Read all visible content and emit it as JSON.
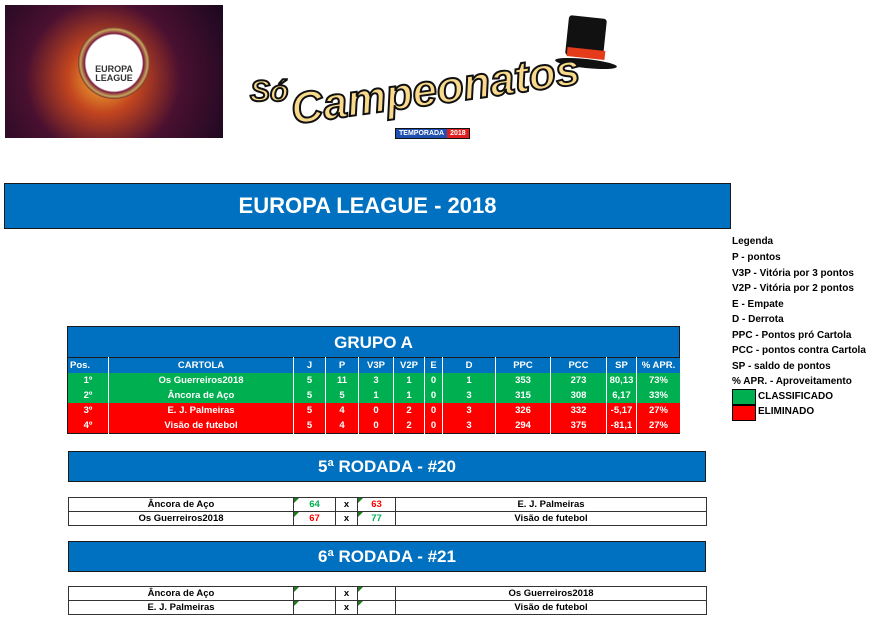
{
  "logos": {
    "europa_league": "UEFA EUROPA LEAGUE",
    "so_campeonatos_line1": "Só",
    "so_campeonatos_line2": "Campeonatos",
    "temporada": "TEMPORADA",
    "temporada_year": "2018"
  },
  "title": "EUROPA LEAGUE - 2018",
  "colors": {
    "header_blue": "#0070c0",
    "classificado": "#00b050",
    "eliminado": "#ff0000",
    "score_win": "#00b050",
    "score_loss": "#ff0000"
  },
  "legend": {
    "title": "Legenda",
    "items": [
      "P - pontos",
      "V3P - Vitória por 3 pontos",
      "V2P - Vitória por 2 pontos",
      "E - Empate",
      "D - Derrota",
      "PPC - Pontos pró Cartola",
      "PCC - pontos contra Cartola",
      "SP - saldo de pontos",
      "% APR. - Aproveitamento"
    ],
    "classificado": "CLASSIFICADO",
    "eliminado": "ELIMINADO"
  },
  "group": {
    "title": "GRUPO A",
    "columns": [
      "Pos.",
      "CARTOLA",
      "J",
      "P",
      "V3P",
      "V2P",
      "E",
      "D",
      "PPC",
      "PCC",
      "SP",
      "% APR."
    ],
    "rows": [
      {
        "status": "classificado",
        "cells": [
          "1º",
          "Os Guerreiros2018",
          "5",
          "11",
          "3",
          "1",
          "0",
          "1",
          "353",
          "273",
          "80,13",
          "73%"
        ]
      },
      {
        "status": "classificado",
        "cells": [
          "2º",
          "Âncora de Aço",
          "5",
          "5",
          "1",
          "1",
          "0",
          "3",
          "315",
          "308",
          "6,17",
          "33%"
        ]
      },
      {
        "status": "eliminado",
        "cells": [
          "3º",
          "E. J. Palmeiras",
          "5",
          "4",
          "0",
          "2",
          "0",
          "3",
          "326",
          "332",
          "-5,17",
          "27%"
        ]
      },
      {
        "status": "eliminado",
        "cells": [
          "4º",
          "Visão de futebol",
          "5",
          "4",
          "0",
          "2",
          "0",
          "3",
          "294",
          "375",
          "-81,1",
          "27%"
        ]
      }
    ]
  },
  "rounds": [
    {
      "title": "5ª RODADA - #20",
      "matches": [
        {
          "home": "Âncora de Aço",
          "home_score": "64",
          "home_result": "win",
          "sep": "x",
          "away_score": "63",
          "away_result": "loss",
          "away": "E. J. Palmeiras"
        },
        {
          "home": "Os Guerreiros2018",
          "home_score": "67",
          "home_result": "loss",
          "sep": "x",
          "away_score": "77",
          "away_result": "win",
          "away": "Visão de futebol"
        }
      ]
    },
    {
      "title": "6ª RODADA - #21",
      "matches": [
        {
          "home": "Âncora de Aço",
          "home_score": "",
          "sep": "x",
          "away_score": "",
          "away": "Os Guerreiros2018"
        },
        {
          "home": "E. J. Palmeiras",
          "home_score": "",
          "sep": "x",
          "away_score": "",
          "away": "Visão de futebol"
        }
      ]
    }
  ]
}
